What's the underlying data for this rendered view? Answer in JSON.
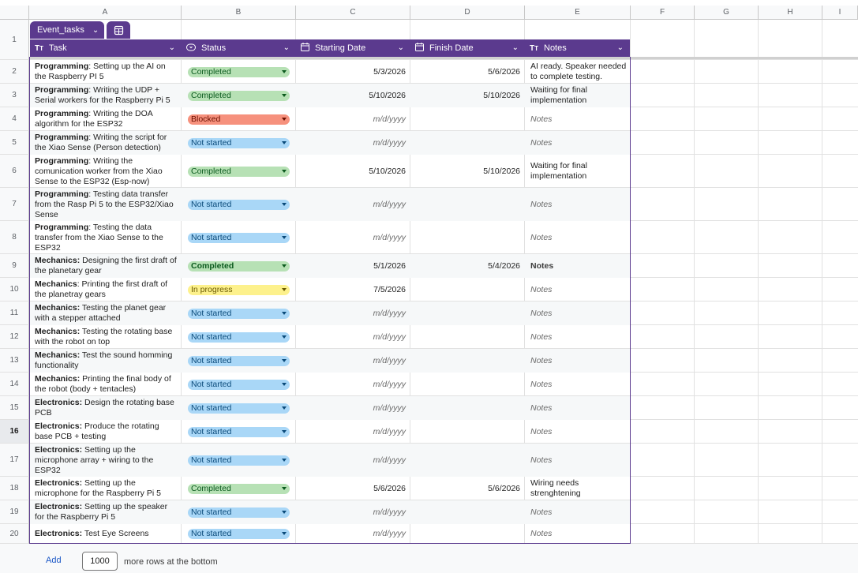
{
  "columns": [
    "A",
    "B",
    "C",
    "D",
    "E",
    "F",
    "G",
    "H",
    "I"
  ],
  "table": {
    "name": "Event_tasks",
    "headers": {
      "task": "Task",
      "status": "Status",
      "start": "Starting Date",
      "finish": "Finish Date",
      "notes": "Notes"
    }
  },
  "rows": [
    {
      "num": "1"
    },
    {
      "num": "2",
      "cat": "Programming",
      "sep": ": ",
      "desc": "Setting up the AI on the Raspberry PI 5",
      "status": "Completed",
      "start": "5/3/2026",
      "finish": "5/6/2026",
      "notes": "AI ready. Speaker needed to complete testing."
    },
    {
      "num": "3",
      "cat": "Programming",
      "sep": ": ",
      "desc": "Writing the UDP + Serial workers for the Raspberry Pi 5",
      "status": "Completed",
      "start": "5/10/2026",
      "finish": "5/10/2026",
      "notes": "Waiting for final implementation"
    },
    {
      "num": "4",
      "cat": "Programming",
      "sep": ": ",
      "desc": "Writing the DOA algorithm for the ESP32",
      "status": "Blocked",
      "start": "m/d/yyyy",
      "finish": "",
      "notes": "Notes"
    },
    {
      "num": "5",
      "cat": "Programming",
      "sep": ": ",
      "desc": "Writing the script for the Xiao Sense (Person detection)",
      "status": "Not started",
      "start": "m/d/yyyy",
      "finish": "",
      "notes": "Notes"
    },
    {
      "num": "6",
      "cat": "Programming",
      "sep": ": ",
      "desc": "Writing the comunication worker from the Xiao Sense to the ESP32 (Esp-now)",
      "status": "Completed",
      "start": "5/10/2026",
      "finish": "5/10/2026",
      "notes": "Waiting for final implementation"
    },
    {
      "num": "7",
      "cat": "Programming",
      "sep": ": ",
      "desc": "Testing data transfer from the Rasp Pi 5 to the ESP32/Xiao Sense",
      "status": "Not started",
      "start": "m/d/yyyy",
      "finish": "",
      "notes": "Notes"
    },
    {
      "num": "8",
      "cat": "Programming",
      "sep": ": ",
      "desc": "Testing the data transfer from the Xiao Sense to the ESP32",
      "status": "Not started",
      "start": "m/d/yyyy",
      "finish": "",
      "notes": "Notes"
    },
    {
      "num": "9",
      "cat": "Mechanics:",
      "sep": " ",
      "desc": "Designing the first draft of the planetary gear",
      "status": "Completed",
      "start": "5/1/2026",
      "finish": "5/4/2026",
      "notes": "Notes"
    },
    {
      "num": "10",
      "cat": "Mechanics",
      "sep": ": ",
      "desc": "Printing the first draft of the planetray gears",
      "status": "In progress",
      "start": "7/5/2026",
      "finish": "",
      "notes": "Notes"
    },
    {
      "num": "11",
      "cat": "Mechanics:",
      "sep": " ",
      "desc": "Testing the planet gear with a stepper attached",
      "status": "Not started",
      "start": "m/d/yyyy",
      "finish": "",
      "notes": "Notes"
    },
    {
      "num": "12",
      "cat": "Mechanics:",
      "sep": " ",
      "desc": "Testing the rotating base with the robot on top",
      "status": "Not started",
      "start": "m/d/yyyy",
      "finish": "",
      "notes": "Notes"
    },
    {
      "num": "13",
      "cat": "Mechanics:",
      "sep": " ",
      "desc": "Test the sound homming functionality",
      "status": "Not started",
      "start": "m/d/yyyy",
      "finish": "",
      "notes": "Notes"
    },
    {
      "num": "14",
      "cat": "Mechanics:",
      "sep": " ",
      "desc": "Printing the final body of the robot (body + tentacles)",
      "status": "Not started",
      "start": "m/d/yyyy",
      "finish": "",
      "notes": "Notes"
    },
    {
      "num": "15",
      "cat": "Electronics:",
      "sep": " ",
      "desc": "Design the rotating base PCB",
      "status": "Not started",
      "start": "m/d/yyyy",
      "finish": "",
      "notes": "Notes"
    },
    {
      "num": "16",
      "cat": "Electronics:",
      "sep": " ",
      "desc": "Produce the rotating base PCB + testing",
      "status": "Not started",
      "start": "m/d/yyyy",
      "finish": "",
      "notes": "Notes"
    },
    {
      "num": "17",
      "cat": "Electronics:",
      "sep": " ",
      "desc": "Setting up the microphone array + wiring to the ESP32",
      "status": "Not started",
      "start": "m/d/yyyy",
      "finish": "",
      "notes": "Notes"
    },
    {
      "num": "18",
      "cat": "Electronics:",
      "sep": " ",
      "desc": "Setting up the microphone for the Raspberry Pi 5",
      "status": "Completed",
      "start": "5/6/2026",
      "finish": "5/6/2026",
      "notes": "Wiring needs strenghtening"
    },
    {
      "num": "19",
      "cat": "Electronics:",
      "sep": " ",
      "desc": "Setting up the speaker for the Raspberry Pi 5",
      "status": "Not started",
      "start": "m/d/yyyy",
      "finish": "",
      "notes": "Notes"
    },
    {
      "num": "20",
      "cat": "Electronics:",
      "sep": " ",
      "desc": "Test Eye Screens",
      "status": "Not started",
      "start": "m/d/yyyy",
      "finish": "",
      "notes": "Notes"
    }
  ],
  "status_colors": {
    "Completed": {
      "bg": "#b7e1b5",
      "fg": "#0b5a1e"
    },
    "Blocked": {
      "bg": "#f6917d",
      "fg": "#6b0f00"
    },
    "Not started": {
      "bg": "#a9d7f7",
      "fg": "#0a4a7a"
    },
    "In progress": {
      "bg": "#fdf18c",
      "fg": "#6a5a00"
    }
  },
  "footer": {
    "add_label": "Add",
    "rows_value": "1000",
    "more_label": "more rows at the bottom"
  },
  "accent_color": "#5b3a8e",
  "selected_row": "16"
}
